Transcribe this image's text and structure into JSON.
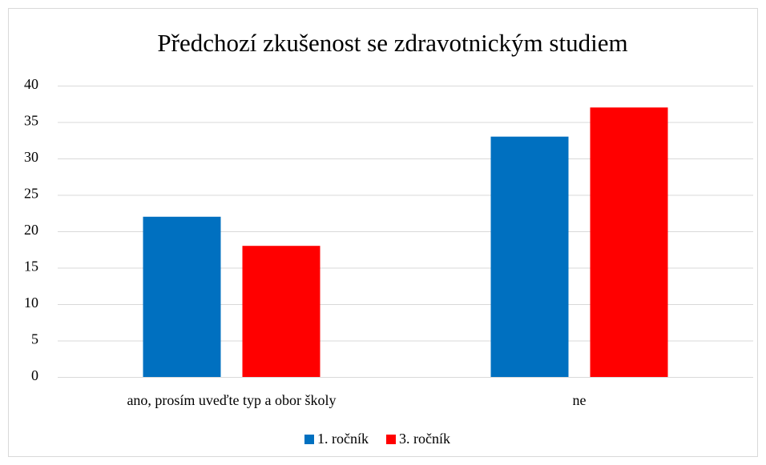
{
  "chart_data": {
    "type": "bar",
    "title": "Předchozí zkušenost se zdravotnickým studiem",
    "categories": [
      "ano, prosím uveďte typ a obor školy",
      "ne"
    ],
    "series": [
      {
        "name": "1. ročník",
        "color": "#0070c0",
        "values": [
          22,
          33
        ]
      },
      {
        "name": "3. ročník",
        "color": "#ff0000",
        "values": [
          18,
          37
        ]
      }
    ],
    "ylim": [
      0,
      40
    ],
    "yticks": [
      0,
      5,
      10,
      15,
      20,
      25,
      30,
      35,
      40
    ],
    "grid": true,
    "legend": "bottom"
  }
}
